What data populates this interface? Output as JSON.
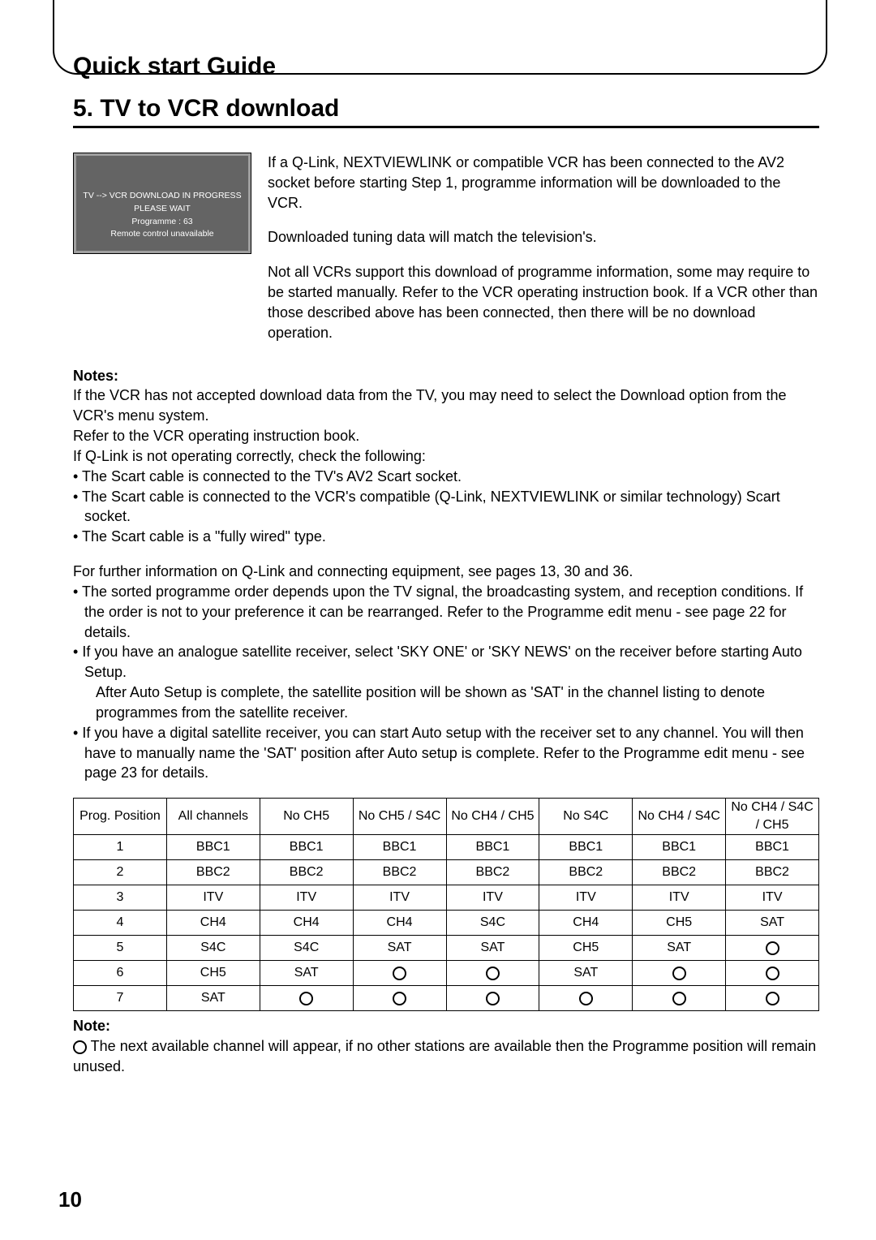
{
  "guideTitle": "Quick start Guide",
  "sectionTitle": "5. TV to VCR download",
  "osd": {
    "line1": "TV --> VCR DOWNLOAD IN PROGRESS",
    "line2": "PLEASE WAIT",
    "line3": "Programme : 63",
    "line4": "Remote control unavailable"
  },
  "intro": {
    "p1": "If a Q-Link, NEXTVIEWLINK or compatible VCR has been connected to the AV2 socket before starting Step 1, programme information will be downloaded to the VCR.",
    "p2": "Downloaded tuning data will match the television's.",
    "p3": "Not all VCRs support this download of programme information, some may require to be started manually. Refer to the VCR operating instruction book. If a VCR other than those described above has been connected, then there will be no download operation."
  },
  "notesHeading": "Notes:",
  "notesBody1": "If the VCR has not accepted download data from the TV, you may need to select the Download option from the VCR's menu system.",
  "notesBody2": "Refer to the VCR operating instruction book.",
  "notesBody3": "If Q-Link is not operating correctly, check the following:",
  "bullets1": [
    "The Scart cable is connected to the TV's AV2 Scart socket.",
    "The Scart cable is connected to the VCR's compatible (Q-Link, NEXTVIEWLINK or similar technology) Scart socket.",
    "The Scart cable is a \"fully wired\" type."
  ],
  "furtherInfo": "For further information on Q-Link and connecting equipment, see pages 13, 30 and 36.",
  "bullets2": [
    "The sorted programme order depends upon the TV signal, the broadcasting system, and reception conditions. If the order is not to your preference it can be rearranged. Refer to the Programme edit menu - see page 22 for details.",
    "If you have an analogue satellite receiver, select 'SKY ONE' or 'SKY NEWS' on the receiver before starting Auto Setup.",
    "If you have a digital satellite receiver, you can start Auto setup with the receiver set to any channel. You will then have to manually name the 'SAT' position after Auto setup is complete. Refer to the Programme edit menu - see page 23 for details."
  ],
  "bullets2Indent": "After Auto Setup is complete, the satellite position will be shown as 'SAT' in the channel listing to denote programmes from the satellite receiver.",
  "table": {
    "headers": [
      "Prog. Position",
      "All channels",
      "No CH5",
      "No CH5 / S4C",
      "No CH4 / CH5",
      "No S4C",
      "No CH4 / S4C",
      "No CH4 / S4C / CH5"
    ],
    "rows": [
      [
        "1",
        "BBC1",
        "BBC1",
        "BBC1",
        "BBC1",
        "BBC1",
        "BBC1",
        "BBC1"
      ],
      [
        "2",
        "BBC2",
        "BBC2",
        "BBC2",
        "BBC2",
        "BBC2",
        "BBC2",
        "BBC2"
      ],
      [
        "3",
        "ITV",
        "ITV",
        "ITV",
        "ITV",
        "ITV",
        "ITV",
        "ITV"
      ],
      [
        "4",
        "CH4",
        "CH4",
        "CH4",
        "S4C",
        "CH4",
        "CH5",
        "SAT"
      ],
      [
        "5",
        "S4C",
        "S4C",
        "SAT",
        "SAT",
        "CH5",
        "SAT",
        "O"
      ],
      [
        "6",
        "CH5",
        "SAT",
        "O",
        "O",
        "SAT",
        "O",
        "O"
      ],
      [
        "7",
        "SAT",
        "O",
        "O",
        "O",
        "O",
        "O",
        "O"
      ]
    ]
  },
  "noteBottomHeading": "Note:",
  "noteBottomText": " The next available channel will appear, if no other stations are available then the Programme position will remain unused.",
  "pageNumber": "10"
}
